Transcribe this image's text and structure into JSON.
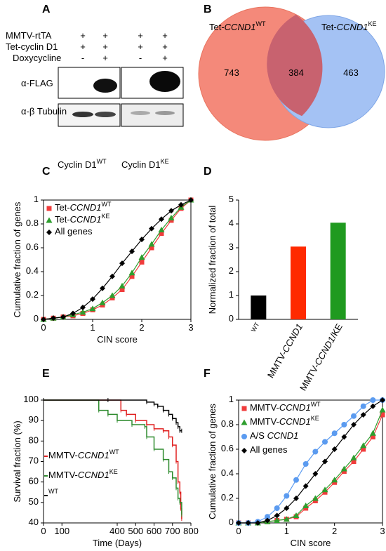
{
  "panel_labels": [
    "A",
    "B",
    "C",
    "D",
    "E",
    "F"
  ],
  "blot": {
    "rows": [
      {
        "label": "MMTV-rtTA",
        "signs": [
          "+",
          "+",
          "+",
          "+"
        ]
      },
      {
        "label": "Tet-cyclin D1",
        "signs": [
          "+",
          "+",
          "+",
          "+"
        ]
      },
      {
        "label": "Doxycycline",
        "signs": [
          "-",
          "+",
          "-",
          "+"
        ]
      }
    ],
    "bands": [
      "α-FLAG",
      "α-β Tubulin"
    ],
    "lanes": [
      "Cyclin D1WT",
      "Cyclin D1KE"
    ]
  },
  "chart_data": [
    {
      "type": "venn",
      "sets": [
        {
          "name": "Tet-CCND1WT",
          "color": "#f4897a"
        },
        {
          "name": "Tet-CCND1KE",
          "color": "#a4c2f4"
        }
      ],
      "values": [
        743,
        384,
        463
      ]
    },
    {
      "type": "line",
      "xlabel": "CIN score",
      "ylabel": "Cumulative fraction of genes",
      "frame": true,
      "legend": "upper left",
      "x": [
        0,
        0.2,
        0.4,
        0.6,
        0.8,
        1.0,
        1.2,
        1.4,
        1.6,
        1.8,
        2.0,
        2.2,
        2.4,
        2.6,
        2.8,
        3.0
      ],
      "xlim": [
        0,
        3
      ],
      "xticks": [
        0,
        1,
        2,
        3
      ],
      "ylim": [
        0,
        1
      ],
      "yticks": [
        0,
        0.2,
        0.4,
        0.6,
        0.8,
        1
      ],
      "series": [
        {
          "name": "Tet-CCND1WT",
          "color": "#f03c3c",
          "marker": "square",
          "values": [
            0,
            0.01,
            0.02,
            0.03,
            0.05,
            0.08,
            0.12,
            0.18,
            0.25,
            0.36,
            0.48,
            0.6,
            0.72,
            0.83,
            0.93,
            1.0
          ]
        },
        {
          "name": "Tet-CCND1KE",
          "color": "#2e9e2e",
          "marker": "triangle",
          "values": [
            0,
            0.01,
            0.02,
            0.04,
            0.06,
            0.09,
            0.14,
            0.2,
            0.28,
            0.39,
            0.52,
            0.63,
            0.75,
            0.85,
            0.94,
            1.0
          ]
        },
        {
          "name": "All genes",
          "color": "#000000",
          "marker": "diamond",
          "values": [
            0,
            0.01,
            0.02,
            0.05,
            0.1,
            0.17,
            0.26,
            0.36,
            0.47,
            0.57,
            0.67,
            0.76,
            0.84,
            0.91,
            0.96,
            1.0
          ]
        }
      ]
    },
    {
      "type": "bar",
      "ylabel": "Normalized fraction of total",
      "frame": false,
      "categories": [
        "WT",
        "MMTV-CCND1",
        "MMTV-CCND1/KE"
      ],
      "values": [
        1,
        3.05,
        4.05
      ],
      "colors": [
        "#000000",
        "#ff2a00",
        "#1f9a1f"
      ],
      "ylim": [
        0,
        5
      ],
      "yticks": [
        0,
        1,
        2,
        3,
        4,
        5
      ]
    },
    {
      "type": "step",
      "xlabel": "Time (Days)",
      "ylabel": "Survival fraction (%)",
      "frame": false,
      "legend": "left",
      "xlim": [
        0,
        800
      ],
      "xticks": [
        0,
        100,
        400,
        500,
        600,
        700,
        800
      ],
      "ylim": [
        40,
        100
      ],
      "yticks": [
        40,
        50,
        60,
        70,
        80,
        90,
        100
      ],
      "series": [
        {
          "name": "MMTV-CCND1WT",
          "color": "#e02020",
          "x": [
            0,
            420,
            450,
            500,
            560,
            600,
            650,
            680,
            700,
            720,
            730,
            740,
            745,
            750
          ],
          "values": [
            100,
            95,
            93,
            90,
            88,
            86,
            85,
            82,
            78,
            70,
            60,
            55,
            47,
            42
          ]
        },
        {
          "name": "MMTV-CCND1KE",
          "color": "#2e8b2e",
          "x": [
            0,
            300,
            350,
            400,
            480,
            550,
            560,
            600,
            650,
            680,
            700,
            720,
            730,
            740,
            750
          ],
          "values": [
            100,
            95,
            93,
            90,
            88,
            87,
            82,
            76,
            71,
            65,
            62,
            57,
            52,
            50,
            44
          ]
        },
        {
          "name": "WT",
          "color": "#000000",
          "x": [
            0,
            350,
            560,
            600,
            620,
            650,
            680,
            700,
            720,
            730,
            740,
            750
          ],
          "values": [
            100,
            100,
            99,
            98,
            97,
            95,
            93,
            91,
            89,
            87,
            85,
            85
          ]
        }
      ]
    },
    {
      "type": "line",
      "xlabel": "CIN score",
      "ylabel": "Cumulative fraction of genes",
      "frame": true,
      "legend": "upper left",
      "x": [
        0,
        0.2,
        0.4,
        0.6,
        0.8,
        1.0,
        1.2,
        1.4,
        1.6,
        1.8,
        2.0,
        2.2,
        2.4,
        2.6,
        2.8,
        3.0
      ],
      "xlim": [
        0,
        3
      ],
      "xticks": [
        0,
        1,
        2,
        3
      ],
      "ylim": [
        0,
        1
      ],
      "yticks": [
        0,
        0.2,
        0.4,
        0.6,
        0.8,
        1
      ],
      "series": [
        {
          "name": "MMTV-CCND1WT",
          "color": "#f03c3c",
          "marker": "square",
          "values": [
            0,
            0,
            0,
            0.01,
            0.02,
            0.03,
            0.05,
            0.12,
            0.18,
            0.25,
            0.33,
            0.42,
            0.5,
            0.6,
            0.7,
            0.88
          ]
        },
        {
          "name": "MMTV-CCND1KE",
          "color": "#2e9e2e",
          "marker": "triangle",
          "values": [
            0,
            0,
            0,
            0.01,
            0.02,
            0.03,
            0.06,
            0.14,
            0.2,
            0.27,
            0.35,
            0.44,
            0.53,
            0.63,
            0.73,
            0.92
          ]
        },
        {
          "name": "A/S CCND1",
          "color": "#5b9bf0",
          "marker": "circle",
          "values": [
            0,
            0,
            0.01,
            0.05,
            0.12,
            0.22,
            0.35,
            0.48,
            0.58,
            0.66,
            0.73,
            0.8,
            0.87,
            0.95,
            1,
            1
          ]
        },
        {
          "name": "All genes",
          "color": "#000000",
          "marker": "diamond",
          "values": [
            0,
            0,
            0,
            0.02,
            0.06,
            0.12,
            0.2,
            0.3,
            0.4,
            0.5,
            0.6,
            0.7,
            0.8,
            0.88,
            0.95,
            1
          ]
        }
      ]
    }
  ]
}
